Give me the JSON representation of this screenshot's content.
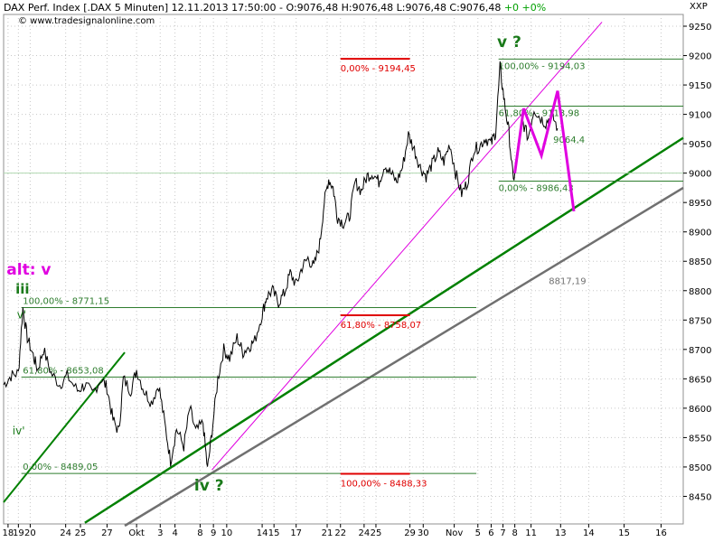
{
  "header": {
    "info": "DAX Perf. Index [.DAX  5 Minuten] 12.11.2013 17:50:00 - O:9076,48 H:9076,48 L:9076,48 C:9076,48",
    "change": "+0 +0%",
    "watermark": "© www.tradesignalonline.com",
    "axis_symbol": "XXP"
  },
  "chart_data": {
    "type": "line",
    "title": "DAX Perf. Index [.DAX  5 Minuten]",
    "ylim": [
      8400,
      9270
    ],
    "y_ticks": [
      8450,
      8500,
      8550,
      8600,
      8650,
      8700,
      8750,
      8800,
      8850,
      8900,
      8950,
      9000,
      9050,
      9100,
      9150,
      9200,
      9250
    ],
    "x_ticks": [
      {
        "label": "18",
        "x": 0.3
      },
      {
        "label": "19",
        "x": 1
      },
      {
        "label": "20",
        "x": 1.8
      },
      {
        "label": "24",
        "x": 4.2
      },
      {
        "label": "25",
        "x": 5.2
      },
      {
        "label": "27",
        "x": 7
      },
      {
        "label": "Okt",
        "x": 9
      },
      {
        "label": "3",
        "x": 10.6
      },
      {
        "label": "4",
        "x": 11.6
      },
      {
        "label": "8",
        "x": 13.3
      },
      {
        "label": "9",
        "x": 14.2
      },
      {
        "label": "10",
        "x": 15.1
      },
      {
        "label": "14",
        "x": 17.5
      },
      {
        "label": "15",
        "x": 18.3
      },
      {
        "label": "17",
        "x": 19.8
      },
      {
        "label": "21",
        "x": 21.9
      },
      {
        "label": "22",
        "x": 22.8
      },
      {
        "label": "24",
        "x": 24.4
      },
      {
        "label": "25",
        "x": 25.2
      },
      {
        "label": "29",
        "x": 27.5
      },
      {
        "label": "30",
        "x": 28.4
      },
      {
        "label": "Nov",
        "x": 30.5
      },
      {
        "label": "5",
        "x": 32.1
      },
      {
        "label": "6",
        "x": 33
      },
      {
        "label": "7",
        "x": 33.8
      },
      {
        "label": "8",
        "x": 34.6
      },
      {
        "label": "11",
        "x": 35.7
      },
      {
        "label": "13",
        "x": 37.7
      },
      {
        "label": "14",
        "x": 39.6
      },
      {
        "label": "15",
        "x": 42
      },
      {
        "label": "16",
        "x": 44.5
      }
    ],
    "xlim": [
      0,
      46
    ],
    "price": [
      [
        0,
        8640
      ],
      [
        0.5,
        8655
      ],
      [
        1,
        8660
      ],
      [
        1.3,
        8770
      ],
      [
        1.6,
        8720
      ],
      [
        2,
        8690
      ],
      [
        2.3,
        8665
      ],
      [
        2.7,
        8700
      ],
      [
        3.2,
        8660
      ],
      [
        3.8,
        8640
      ],
      [
        4.3,
        8655
      ],
      [
        5,
        8630
      ],
      [
        5.5,
        8640
      ],
      [
        6,
        8625
      ],
      [
        6.6,
        8650
      ],
      [
        7,
        8635
      ],
      [
        7.4,
        8580
      ],
      [
        7.8,
        8560
      ],
      [
        8.1,
        8650
      ],
      [
        8.6,
        8630
      ],
      [
        9,
        8665
      ],
      [
        9.5,
        8630
      ],
      [
        10,
        8610
      ],
      [
        10.5,
        8640
      ],
      [
        10.9,
        8575
      ],
      [
        11.3,
        8510
      ],
      [
        11.7,
        8565
      ],
      [
        12.2,
        8535
      ],
      [
        12.6,
        8600
      ],
      [
        13,
        8560
      ],
      [
        13.5,
        8575
      ],
      [
        13.8,
        8495
      ],
      [
        14.1,
        8560
      ],
      [
        14.5,
        8650
      ],
      [
        14.9,
        8700
      ],
      [
        15.3,
        8685
      ],
      [
        15.8,
        8720
      ],
      [
        16.2,
        8695
      ],
      [
        16.6,
        8705
      ],
      [
        17,
        8715
      ],
      [
        17.5,
        8760
      ],
      [
        17.8,
        8790
      ],
      [
        18.2,
        8800
      ],
      [
        18.6,
        8780
      ],
      [
        19,
        8795
      ],
      [
        19.4,
        8830
      ],
      [
        19.8,
        8810
      ],
      [
        20.2,
        8840
      ],
      [
        20.6,
        8855
      ],
      [
        21,
        8840
      ],
      [
        21.4,
        8880
      ],
      [
        21.7,
        8950
      ],
      [
        22,
        8990
      ],
      [
        22.3,
        8975
      ],
      [
        22.6,
        8925
      ],
      [
        23,
        8915
      ],
      [
        23.4,
        8925
      ],
      [
        23.8,
        8985
      ],
      [
        24.2,
        8970
      ],
      [
        24.6,
        8995
      ],
      [
        25,
        9000
      ],
      [
        25.4,
        8985
      ],
      [
        25.8,
        9015
      ],
      [
        26.2,
        9000
      ],
      [
        26.6,
        8985
      ],
      [
        27,
        9010
      ],
      [
        27.4,
        9065
      ],
      [
        27.8,
        9040
      ],
      [
        28.2,
        9010
      ],
      [
        28.6,
        8995
      ],
      [
        29,
        9015
      ],
      [
        29.4,
        9035
      ],
      [
        29.8,
        9020
      ],
      [
        30.2,
        9050
      ],
      [
        30.6,
        9000
      ],
      [
        31,
        8965
      ],
      [
        31.4,
        8985
      ],
      [
        31.8,
        9040
      ],
      [
        32.2,
        9045
      ],
      [
        32.6,
        9060
      ],
      [
        33,
        9050
      ],
      [
        33.3,
        9070
      ],
      [
        33.6,
        9180
      ],
      [
        33.9,
        9120
      ],
      [
        34.2,
        9070
      ],
      [
        34.5,
        8985
      ],
      [
        34.8,
        9040
      ],
      [
        35.1,
        9090
      ],
      [
        35.5,
        9060
      ],
      [
        35.9,
        9110
      ],
      [
        36.3,
        9095
      ],
      [
        36.7,
        9085
      ],
      [
        37.1,
        9100
      ],
      [
        37.5,
        9076
      ]
    ],
    "fib_left": [
      {
        "label": "100,00% - 8771,15",
        "value": 8771.15
      },
      {
        "label": "61,80% - 8653,08",
        "value": 8653.08
      },
      {
        "label": "0,00% - 8489,05",
        "value": 8489.05
      }
    ],
    "fib_mid": [
      {
        "label": "0,00% - 9194,45",
        "value": 9194.45
      },
      {
        "label": "61,80% - 8758,07",
        "value": 8758.07
      },
      {
        "label": "100,00% - 8488,33",
        "value": 8488.33
      }
    ],
    "fib_right": [
      {
        "label": "100,00% - 9194,03",
        "value": 9194.03
      },
      {
        "label": "61,80% - 9113,98",
        "value": 9113.98
      },
      {
        "label": "0,00% - 8986,43",
        "value": 8986.43
      }
    ],
    "level_label": "9064,4",
    "trendline_label": "8817,19",
    "wave_labels": [
      {
        "text": "alt: v",
        "color": "#e000e0"
      },
      {
        "text": "iii",
        "color": "#1a7a1a"
      },
      {
        "text": "v'",
        "color": "#1a7a1a"
      },
      {
        "text": "iv'",
        "color": "#1a7a1a"
      },
      {
        "text": "iv ?",
        "color": "#1a7a1a"
      },
      {
        "text": "v ?",
        "color": "#1a7a1a"
      }
    ],
    "forecast_path": [
      [
        34.6,
        9000
      ],
      [
        35.2,
        9110
      ],
      [
        36.4,
        9030
      ],
      [
        37.5,
        9140
      ],
      [
        38.6,
        8935
      ]
    ],
    "colors": {
      "price": "#000000",
      "fib_green": "#2e7d2e",
      "fib_red": "#e00000",
      "trend_green": "#008000",
      "trend_gray": "#707070",
      "magenta": "#e000e0",
      "grid": "#c8c8c8"
    }
  }
}
